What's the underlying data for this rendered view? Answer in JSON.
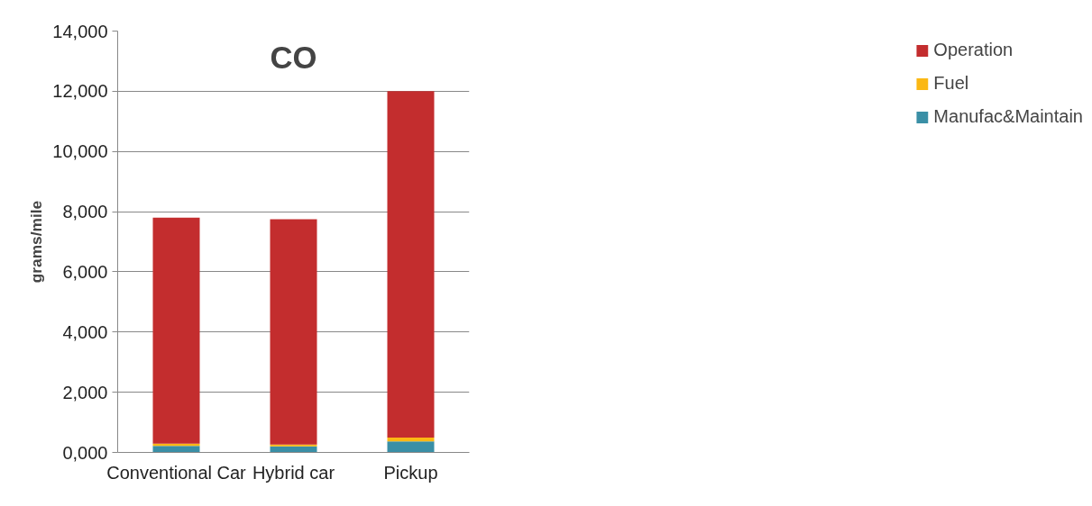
{
  "chart_data": {
    "type": "bar",
    "title": "CO",
    "ylabel": "grams/mile",
    "categories": [
      "Conventional Car",
      "Hybrid car",
      "Pickup"
    ],
    "stacked": true,
    "series": [
      {
        "name": "Manufac&Maintain",
        "color": "#3a8fa6",
        "values": [
          220,
          200,
          370
        ]
      },
      {
        "name": "Fuel",
        "color": "#fbb814",
        "values": [
          70,
          60,
          120
        ]
      },
      {
        "name": "Operation",
        "color": "#c32d2e",
        "values": [
          7510,
          7490,
          11510
        ]
      }
    ],
    "ylim": [
      0,
      14000
    ],
    "yticks": [
      {
        "value": 0,
        "label": "0,000"
      },
      {
        "value": 2000,
        "label": "2,000"
      },
      {
        "value": 4000,
        "label": "4,000"
      },
      {
        "value": 6000,
        "label": "6,000"
      },
      {
        "value": 8000,
        "label": "8,000"
      },
      {
        "value": 10000,
        "label": "10,000"
      },
      {
        "value": 12000,
        "label": "12,000"
      },
      {
        "value": 14000,
        "label": "14,000"
      }
    ],
    "grid": "y",
    "legend": "right"
  }
}
